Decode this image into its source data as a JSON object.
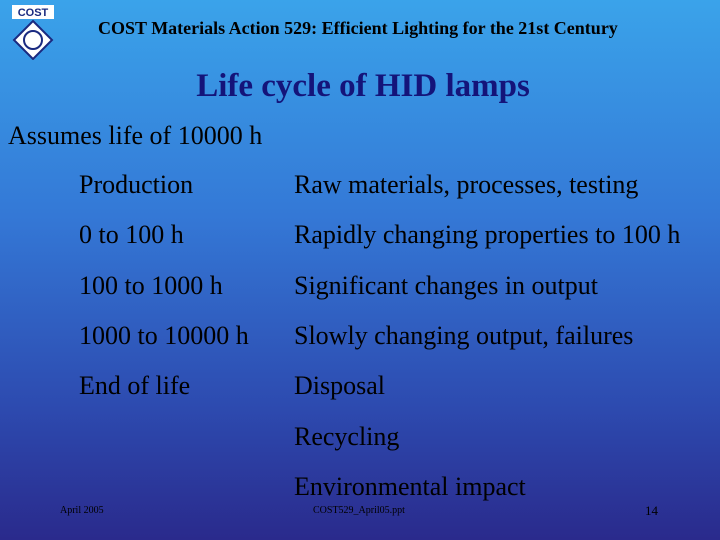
{
  "header": {
    "logo": "COST",
    "title": "COST Materials Action 529: Efficient Lighting for the 21st Century"
  },
  "slide": {
    "title": "Life cycle of HID lamps",
    "intro": "Assumes life of 10000 h",
    "rows": [
      {
        "stage": "Production",
        "details": [
          "Raw materials, processes, testing"
        ]
      },
      {
        "stage": "0 to 100 h",
        "details": [
          "Rapidly changing properties to 100 h"
        ]
      },
      {
        "stage": "100 to 1000 h",
        "details": [
          "Significant changes in output"
        ]
      },
      {
        "stage": "1000 to 10000 h",
        "details": [
          "Slowly changing output, failures"
        ]
      },
      {
        "stage": "End of life",
        "details": [
          "Disposal",
          "Recycling",
          "Environmental impact"
        ]
      }
    ]
  },
  "footer": {
    "date": "April 2005",
    "file": "COST529_April05.ppt",
    "page": "14"
  }
}
